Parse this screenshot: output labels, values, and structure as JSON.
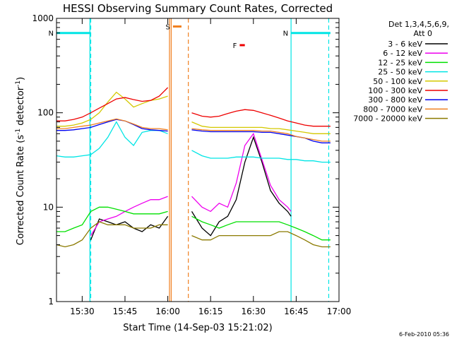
{
  "chart_data": {
    "type": "line",
    "title": "HESSI Observing Summary Count Rates, Corrected",
    "xlabel": "Start Time (14-Sep-03 15:21:02)",
    "ylabel_main": "Corrected Count Rate (s",
    "ylabel_exp1": "-1",
    "ylabel_mid": " detector",
    "ylabel_exp2": "-1",
    "ylabel_end": ")",
    "yscale": "log",
    "ylim": [
      1,
      1000
    ],
    "xlim_minutes": [
      15.35,
      17.0
    ],
    "x_ticks": [
      "15:30",
      "15:45",
      "16:00",
      "16:15",
      "16:30",
      "16:45",
      "17:00"
    ],
    "x_tick_minutes": [
      15.5,
      15.75,
      16.0,
      16.25,
      16.5,
      16.75,
      17.0
    ],
    "y_ticks": [
      1,
      10,
      100,
      1000
    ],
    "y_tick_labels": [
      "1",
      "10",
      "100",
      "1000"
    ],
    "legend_header": [
      "Det 1,3,4,5,6,9,",
      "Att 0"
    ],
    "legend_placement": "right",
    "footer_timestamp": "6-Feb-2010 05:36",
    "flags": [
      {
        "label": "N",
        "color": "#00e5e5",
        "start": 15.35,
        "end": 15.55,
        "level": 700
      },
      {
        "label": "N",
        "color": "#00e5e5",
        "start": 16.72,
        "end": 16.95,
        "level": 700
      },
      {
        "label": "S",
        "color": "#f08020",
        "start": 16.03,
        "end": 16.08,
        "level": 820
      },
      {
        "label": "F",
        "color": "#ee0000",
        "start": 16.42,
        "end": 16.45,
        "level": 520
      }
    ],
    "verticals": [
      {
        "x": 15.55,
        "color": "#00e5e5",
        "dash": true
      },
      {
        "x": 15.545,
        "color": "#00e5e5",
        "dash": false
      },
      {
        "x": 16.72,
        "color": "#00e5e5",
        "dash": false
      },
      {
        "x": 16.94,
        "color": "#00e5e5",
        "dash": true
      },
      {
        "x": 16.01,
        "color": "#f08020",
        "dash": false
      },
      {
        "x": 16.02,
        "color": "#f08020",
        "dash": false
      },
      {
        "x": 16.12,
        "color": "#f08020",
        "dash": true
      }
    ],
    "gap": [
      16.02,
      16.12
    ],
    "series": [
      {
        "name": "3 - 6 keV",
        "color": "#000000",
        "x": [
          15.55,
          15.6,
          15.65,
          15.7,
          15.75,
          15.8,
          15.85,
          15.9,
          15.95,
          16.0,
          16.14,
          16.2,
          16.25,
          16.3,
          16.35,
          16.4,
          16.45,
          16.5,
          16.55,
          16.6,
          16.65,
          16.7,
          16.72
        ],
        "y": [
          4.5,
          7.5,
          7.0,
          6.5,
          7.0,
          6.0,
          5.5,
          6.5,
          6.0,
          8.0,
          9.0,
          6.0,
          5.0,
          7.0,
          8.0,
          12,
          30,
          55,
          30,
          15,
          11,
          9,
          8
        ]
      },
      {
        "name": "6 - 12 keV",
        "color": "#ee00ee",
        "x": [
          15.55,
          15.6,
          15.65,
          15.7,
          15.75,
          15.8,
          15.85,
          15.9,
          15.95,
          16.0,
          16.14,
          16.2,
          16.25,
          16.3,
          16.35,
          16.4,
          16.45,
          16.5,
          16.55,
          16.6,
          16.65,
          16.7,
          16.72
        ],
        "y": [
          5,
          7,
          7.5,
          8,
          9,
          10,
          11,
          12,
          12,
          13,
          13,
          10,
          9,
          11,
          10,
          18,
          45,
          60,
          32,
          17,
          12,
          10,
          9
        ]
      },
      {
        "name": "12 - 25 keV",
        "color": "#00e000",
        "x": [
          15.35,
          15.4,
          15.45,
          15.5,
          15.55,
          15.6,
          15.65,
          15.7,
          15.75,
          15.8,
          15.85,
          15.9,
          15.95,
          16.0,
          16.14,
          16.2,
          16.25,
          16.3,
          16.35,
          16.4,
          16.45,
          16.5,
          16.55,
          16.6,
          16.65,
          16.7,
          16.75,
          16.8,
          16.85,
          16.9,
          16.95
        ],
        "y": [
          5.5,
          5.5,
          6,
          6.5,
          9,
          10,
          10,
          9.5,
          9,
          8.5,
          8.5,
          8.5,
          8.5,
          9,
          8,
          7,
          6.5,
          6,
          6.5,
          7,
          7,
          7,
          7,
          7,
          7,
          6.5,
          6,
          5.5,
          5,
          4.5,
          4.5
        ]
      },
      {
        "name": "25 - 50 keV",
        "color": "#00e5e5",
        "x": [
          15.35,
          15.4,
          15.45,
          15.5,
          15.55,
          15.6,
          15.65,
          15.7,
          15.75,
          15.8,
          15.85,
          15.9,
          15.95,
          16.0,
          16.14,
          16.2,
          16.25,
          16.3,
          16.35,
          16.4,
          16.45,
          16.5,
          16.55,
          16.6,
          16.65,
          16.7,
          16.75,
          16.8,
          16.85,
          16.9,
          16.95
        ],
        "y": [
          35,
          34,
          34,
          35,
          36,
          42,
          55,
          80,
          55,
          45,
          62,
          65,
          65,
          60,
          40,
          35,
          33,
          33,
          33,
          34,
          34,
          34,
          33,
          33,
          33,
          32,
          32,
          31,
          31,
          30,
          30
        ]
      },
      {
        "name": "50 - 100 keV",
        "color": "#d4c800",
        "x": [
          15.35,
          15.4,
          15.45,
          15.5,
          15.55,
          15.6,
          15.65,
          15.7,
          15.75,
          15.8,
          15.85,
          15.9,
          15.95,
          16.0,
          16.14,
          16.2,
          16.25,
          16.3,
          16.35,
          16.4,
          16.45,
          16.5,
          16.55,
          16.6,
          16.65,
          16.7,
          16.75,
          16.8,
          16.85,
          16.9,
          16.95
        ],
        "y": [
          72,
          72,
          74,
          78,
          85,
          100,
          130,
          165,
          140,
          115,
          125,
          135,
          140,
          150,
          80,
          72,
          70,
          70,
          70,
          70,
          70,
          70,
          70,
          68,
          68,
          66,
          64,
          62,
          60,
          60,
          60
        ]
      },
      {
        "name": "100 - 300 keV",
        "color": "#ee0000",
        "x": [
          15.35,
          15.4,
          15.45,
          15.5,
          15.55,
          15.6,
          15.65,
          15.7,
          15.75,
          15.8,
          15.85,
          15.9,
          15.95,
          16.0,
          16.14,
          16.2,
          16.25,
          16.3,
          16.35,
          16.4,
          16.45,
          16.5,
          16.55,
          16.6,
          16.65,
          16.7,
          16.75,
          16.8,
          16.85,
          16.9,
          16.95
        ],
        "y": [
          82,
          82,
          85,
          90,
          100,
          112,
          125,
          140,
          145,
          138,
          132,
          135,
          150,
          185,
          100,
          92,
          90,
          92,
          98,
          104,
          108,
          106,
          100,
          94,
          88,
          82,
          78,
          74,
          72,
          72,
          72
        ]
      },
      {
        "name": "300 - 800 keV",
        "color": "#0000ee",
        "x": [
          15.35,
          15.4,
          15.45,
          15.5,
          15.55,
          15.6,
          15.65,
          15.7,
          15.75,
          15.8,
          15.85,
          15.9,
          15.95,
          16.0,
          16.14,
          16.2,
          16.25,
          16.3,
          16.35,
          16.4,
          16.45,
          16.5,
          16.55,
          16.6,
          16.65,
          16.7,
          16.75,
          16.8,
          16.85,
          16.9,
          16.95
        ],
        "y": [
          65,
          65,
          66,
          68,
          70,
          75,
          80,
          85,
          82,
          75,
          68,
          66,
          65,
          64,
          66,
          64,
          63,
          63,
          63,
          63,
          63,
          63,
          62,
          62,
          60,
          58,
          56,
          54,
          50,
          48,
          48
        ]
      },
      {
        "name": "800 - 7000 keV",
        "color": "#f08020",
        "x": [
          15.35,
          15.4,
          15.45,
          15.5,
          15.55,
          15.6,
          15.65,
          15.7,
          15.75,
          15.8,
          15.85,
          15.9,
          15.95,
          16.0,
          16.14,
          16.2,
          16.25,
          16.3,
          16.35,
          16.4,
          16.45,
          16.5,
          16.55,
          16.6,
          16.65,
          16.7,
          16.75,
          16.8,
          16.85,
          16.9,
          16.95
        ],
        "y": [
          68,
          68,
          70,
          72,
          74,
          78,
          82,
          86,
          82,
          76,
          70,
          68,
          68,
          66,
          68,
          66,
          65,
          65,
          65,
          65,
          65,
          65,
          64,
          64,
          62,
          60,
          56,
          54,
          52,
          50,
          50
        ]
      },
      {
        "name": "7000 - 20000 keV",
        "color": "#8b7a00",
        "x": [
          15.35,
          15.4,
          15.45,
          15.5,
          15.55,
          15.6,
          15.65,
          15.7,
          15.75,
          15.8,
          15.85,
          15.9,
          15.95,
          16.0,
          16.14,
          16.2,
          16.25,
          16.3,
          16.35,
          16.4,
          16.45,
          16.5,
          16.55,
          16.6,
          16.65,
          16.7,
          16.75,
          16.8,
          16.85,
          16.9,
          16.95
        ],
        "y": [
          4,
          3.8,
          4,
          4.5,
          6,
          7,
          6.5,
          6.5,
          6.5,
          6,
          6,
          6,
          6.5,
          6.5,
          5,
          4.5,
          4.5,
          5,
          5,
          5,
          5,
          5,
          5,
          5,
          5.5,
          5.5,
          5,
          4.5,
          4,
          3.8,
          3.8
        ]
      }
    ]
  }
}
